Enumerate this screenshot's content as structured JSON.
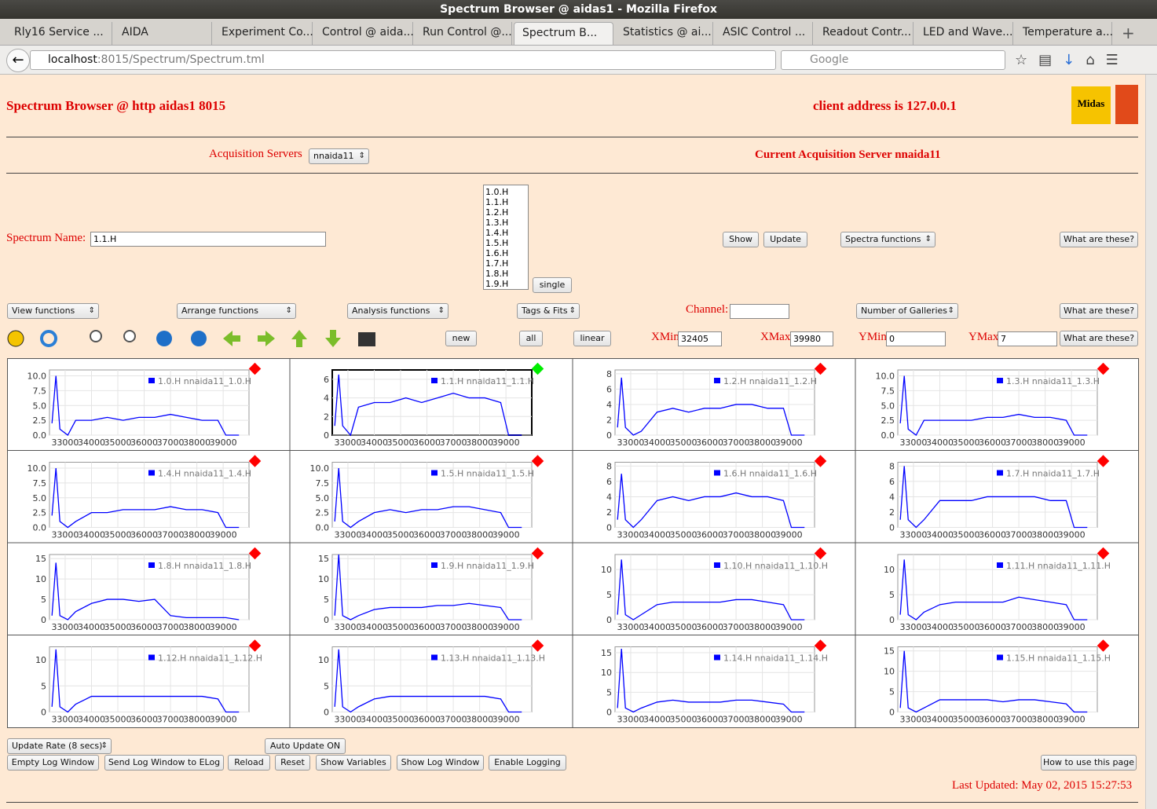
{
  "window": {
    "title": "Spectrum Browser @ aidas1 - Mozilla Firefox"
  },
  "tabs": [
    "Rly16 Service ...",
    "AIDA",
    "Experiment Co...",
    "Control @ aida...",
    "Run Control @...",
    "Spectrum B...",
    "Statistics @ ai...",
    "ASIC Control ...",
    "Readout Contr...",
    "LED and Wave...",
    "Temperature a..."
  ],
  "url": {
    "host": "localhost",
    "path": ":8015/Spectrum/Spectrum.tml"
  },
  "search": "Google",
  "header": {
    "title": "Spectrum Browser @ http aidas1 8015",
    "client": "client address is 127.0.0.1",
    "logo": "Midas"
  },
  "acquisition": {
    "label": "Acquisition Servers",
    "selected": "nnaida11",
    "current": "Current Acquisition Server nnaida11"
  },
  "spectrum": {
    "label": "Spectrum Name:",
    "value": "1.1.H",
    "list": [
      "1.0.H",
      "1.1.H",
      "1.2.H",
      "1.3.H",
      "1.4.H",
      "1.5.H",
      "1.6.H",
      "1.7.H",
      "1.8.H",
      "1.9.H"
    ],
    "single": "single",
    "show": "Show",
    "update": "Update",
    "functions": "Spectra functions",
    "help": "What are these?"
  },
  "controls": {
    "view": "View functions",
    "arrange": "Arrange functions",
    "analysis": "Analysis functions",
    "tags": "Tags & Fits",
    "channel": "Channel:",
    "galleries": "Number of Galleries",
    "help": "What are these?"
  },
  "range": {
    "new": "new",
    "all": "all",
    "linear": "linear",
    "xmin_label": "XMin",
    "xmin": "32405",
    "xmax_label": "XMax",
    "xmax": "39980",
    "ymin_label": "YMin",
    "ymin": "0",
    "ymax_label": "YMax",
    "ymax": "7",
    "help": "What are these?"
  },
  "chart_data": [
    {
      "type": "line",
      "x": [
        32500,
        32650,
        32800,
        33100,
        33400,
        34000,
        34600,
        35200,
        35800,
        36400,
        37000,
        37600,
        38200,
        38800,
        39100,
        39600
      ],
      "xlim": [
        32405,
        39980
      ],
      "xticks": [
        33000,
        34000,
        35000,
        36000,
        37000,
        38000,
        39000
      ],
      "ylim": [
        0,
        11
      ],
      "yticks": [
        {
          "value": 0,
          "label": "0.0"
        },
        2.5,
        {
          "value": 5,
          "label": "5.0"
        },
        7.5,
        {
          "value": 10,
          "label": "10.0"
        }
      ],
      "grid": true,
      "marker_color": "#ff0000",
      "series": [
        {
          "name": "1.0.H nnaida11_1.0.H",
          "color": "#0000ff",
          "values": [
            2,
            10,
            1,
            0,
            2.5,
            2.5,
            3,
            2.5,
            3,
            3,
            3.5,
            3,
            2.5,
            2.5,
            0,
            0
          ]
        }
      ]
    },
    {
      "type": "line",
      "x": [
        32500,
        32650,
        32800,
        33100,
        33400,
        34000,
        34600,
        35200,
        35800,
        36400,
        37000,
        37600,
        38200,
        38800,
        39100,
        39600
      ],
      "xlim": [
        32405,
        39980
      ],
      "xticks": [
        33000,
        34000,
        35000,
        36000,
        37000,
        38000,
        39000
      ],
      "ylim": [
        0,
        7
      ],
      "yticks": [
        0,
        2,
        4,
        6
      ],
      "grid": true,
      "selected": true,
      "marker_color": "#00ee00",
      "series": [
        {
          "name": "1.1.H nnaida11_1.1.H",
          "color": "#0000ff",
          "values": [
            1,
            6.5,
            1,
            0,
            3,
            3.5,
            3.5,
            4,
            3.5,
            4,
            4.5,
            4,
            4,
            3.5,
            0,
            0
          ]
        }
      ]
    },
    {
      "type": "line",
      "x": [
        32500,
        32650,
        32800,
        33100,
        33400,
        34000,
        34600,
        35200,
        35800,
        36400,
        37000,
        37600,
        38200,
        38800,
        39100,
        39600
      ],
      "xlim": [
        32405,
        39980
      ],
      "xticks": [
        33000,
        34000,
        35000,
        36000,
        37000,
        38000,
        39000
      ],
      "ylim": [
        0,
        8.5
      ],
      "yticks": [
        0,
        2,
        4,
        6,
        8
      ],
      "grid": true,
      "marker_color": "#ff0000",
      "series": [
        {
          "name": "1.2.H nnaida11_1.2.H",
          "color": "#0000ff",
          "values": [
            1,
            7.5,
            1,
            0,
            0.5,
            3,
            3.5,
            3,
            3.5,
            3.5,
            4,
            4,
            3.5,
            3.5,
            0,
            0
          ]
        }
      ]
    },
    {
      "type": "line",
      "x": [
        32500,
        32650,
        32800,
        33100,
        33400,
        34000,
        34600,
        35200,
        35800,
        36400,
        37000,
        37600,
        38200,
        38800,
        39100,
        39600
      ],
      "xlim": [
        32405,
        39980
      ],
      "xticks": [
        33000,
        34000,
        35000,
        36000,
        37000,
        38000,
        39000
      ],
      "ylim": [
        0,
        11
      ],
      "yticks": [
        {
          "value": 0,
          "label": "0.0"
        },
        2.5,
        {
          "value": 5,
          "label": "5.0"
        },
        7.5,
        {
          "value": 10,
          "label": "10.0"
        }
      ],
      "grid": true,
      "marker_color": "#ff0000",
      "series": [
        {
          "name": "1.3.H nnaida11_1.3.H",
          "color": "#0000ff",
          "values": [
            2,
            10,
            1,
            0,
            2.5,
            2.5,
            2.5,
            2.5,
            3,
            3,
            3.5,
            3,
            3,
            2.5,
            0,
            0
          ]
        }
      ]
    },
    {
      "type": "line",
      "x": [
        32500,
        32650,
        32800,
        33100,
        33400,
        34000,
        34600,
        35200,
        35800,
        36400,
        37000,
        37600,
        38200,
        38800,
        39100,
        39600
      ],
      "xlim": [
        32405,
        39980
      ],
      "xticks": [
        33000,
        34000,
        35000,
        36000,
        37000,
        38000,
        39000
      ],
      "ylim": [
        0,
        11
      ],
      "yticks": [
        {
          "value": 0,
          "label": "0.0"
        },
        2.5,
        {
          "value": 5,
          "label": "5.0"
        },
        7.5,
        {
          "value": 10,
          "label": "10.0"
        }
      ],
      "grid": true,
      "marker_color": "#ff0000",
      "series": [
        {
          "name": "1.4.H nnaida11_1.4.H",
          "color": "#0000ff",
          "values": [
            2,
            10,
            1,
            0,
            1,
            2.5,
            2.5,
            3,
            3,
            3,
            3.5,
            3,
            3,
            2.5,
            0,
            0
          ]
        }
      ]
    },
    {
      "type": "line",
      "x": [
        32500,
        32650,
        32800,
        33100,
        33400,
        34000,
        34600,
        35200,
        35800,
        36400,
        37000,
        37600,
        38200,
        38800,
        39100,
        39600
      ],
      "xlim": [
        32405,
        39980
      ],
      "xticks": [
        33000,
        34000,
        35000,
        36000,
        37000,
        38000,
        39000
      ],
      "ylim": [
        0,
        11
      ],
      "yticks": [
        {
          "value": 0,
          "label": "0.0"
        },
        2.5,
        {
          "value": 5,
          "label": "5.0"
        },
        7.5,
        {
          "value": 10,
          "label": "10.0"
        }
      ],
      "grid": true,
      "marker_color": "#ff0000",
      "series": [
        {
          "name": "1.5.H nnaida11_1.5.H",
          "color": "#0000ff",
          "values": [
            1,
            10,
            1,
            0,
            1,
            2.5,
            3,
            2.5,
            3,
            3,
            3.5,
            3.5,
            3,
            2.5,
            0,
            0
          ]
        }
      ]
    },
    {
      "type": "line",
      "x": [
        32500,
        32650,
        32800,
        33100,
        33400,
        34000,
        34600,
        35200,
        35800,
        36400,
        37000,
        37600,
        38200,
        38800,
        39100,
        39600
      ],
      "xlim": [
        32405,
        39980
      ],
      "xticks": [
        33000,
        34000,
        35000,
        36000,
        37000,
        38000,
        39000
      ],
      "ylim": [
        0,
        8.5
      ],
      "yticks": [
        0,
        2,
        4,
        6,
        8
      ],
      "grid": true,
      "marker_color": "#ff0000",
      "series": [
        {
          "name": "1.6.H nnaida11_1.6.H",
          "color": "#0000ff",
          "values": [
            1,
            7,
            1,
            0,
            1,
            3.5,
            4,
            3.5,
            4,
            4,
            4.5,
            4,
            4,
            3.5,
            0,
            0
          ]
        }
      ]
    },
    {
      "type": "line",
      "x": [
        32500,
        32650,
        32800,
        33100,
        33400,
        34000,
        34600,
        35200,
        35800,
        36400,
        37000,
        37600,
        38200,
        38800,
        39100,
        39600
      ],
      "xlim": [
        32405,
        39980
      ],
      "xticks": [
        33000,
        34000,
        35000,
        36000,
        37000,
        38000,
        39000
      ],
      "ylim": [
        0,
        8.5
      ],
      "yticks": [
        0,
        2,
        4,
        6,
        8
      ],
      "grid": true,
      "marker_color": "#ff0000",
      "series": [
        {
          "name": "1.7.H nnaida11_1.7.H",
          "color": "#0000ff",
          "values": [
            1,
            8,
            1,
            0,
            1,
            3.5,
            3.5,
            3.5,
            4,
            4,
            4,
            4,
            3.5,
            3.5,
            0,
            0
          ]
        }
      ]
    },
    {
      "type": "line",
      "x": [
        32500,
        32650,
        32800,
        33100,
        33400,
        34000,
        34600,
        35200,
        35800,
        36400,
        37000,
        37600,
        38200,
        38800,
        39100,
        39600
      ],
      "xlim": [
        32405,
        39980
      ],
      "xticks": [
        33000,
        34000,
        35000,
        36000,
        37000,
        38000,
        39000
      ],
      "ylim": [
        0,
        16
      ],
      "yticks": [
        0,
        5,
        10,
        15
      ],
      "grid": true,
      "marker_color": "#ff0000",
      "series": [
        {
          "name": "1.8.H nnaida11_1.8.H",
          "color": "#0000ff",
          "values": [
            1,
            14,
            1,
            0,
            2,
            4,
            5,
            5,
            4.5,
            5,
            1,
            0.5,
            0.5,
            0.5,
            0.5,
            0
          ]
        }
      ]
    },
    {
      "type": "line",
      "x": [
        32500,
        32650,
        32800,
        33100,
        33400,
        34000,
        34600,
        35200,
        35800,
        36400,
        37000,
        37600,
        38200,
        38800,
        39100,
        39600
      ],
      "xlim": [
        32405,
        39980
      ],
      "xticks": [
        33000,
        34000,
        35000,
        36000,
        37000,
        38000,
        39000
      ],
      "ylim": [
        0,
        16
      ],
      "yticks": [
        0,
        5,
        10,
        15
      ],
      "grid": true,
      "marker_color": "#ff0000",
      "series": [
        {
          "name": "1.9.H nnaida11_1.9.H",
          "color": "#0000ff",
          "values": [
            1,
            16,
            1,
            0,
            1,
            2.5,
            3,
            3,
            3,
            3.5,
            3.5,
            4,
            3.5,
            3,
            0,
            0
          ]
        }
      ]
    },
    {
      "type": "line",
      "x": [
        32500,
        32650,
        32800,
        33100,
        33400,
        34000,
        34600,
        35200,
        35800,
        36400,
        37000,
        37600,
        38200,
        38800,
        39100,
        39600
      ],
      "xlim": [
        32405,
        39980
      ],
      "xticks": [
        33000,
        34000,
        35000,
        36000,
        37000,
        38000,
        39000
      ],
      "ylim": [
        0,
        13
      ],
      "yticks": [
        0,
        5,
        10
      ],
      "grid": true,
      "marker_color": "#ff0000",
      "series": [
        {
          "name": "1.10.H nnaida11_1.10.H",
          "color": "#0000ff",
          "values": [
            1,
            12,
            1,
            0,
            1,
            3,
            3.5,
            3.5,
            3.5,
            3.5,
            4,
            4,
            3.5,
            3,
            0,
            0
          ]
        }
      ]
    },
    {
      "type": "line",
      "x": [
        32500,
        32650,
        32800,
        33100,
        33400,
        34000,
        34600,
        35200,
        35800,
        36400,
        37000,
        37600,
        38200,
        38800,
        39100,
        39600
      ],
      "xlim": [
        32405,
        39980
      ],
      "xticks": [
        33000,
        34000,
        35000,
        36000,
        37000,
        38000,
        39000
      ],
      "ylim": [
        0,
        13
      ],
      "yticks": [
        0,
        5,
        10
      ],
      "grid": true,
      "marker_color": "#ff0000",
      "series": [
        {
          "name": "1.11.H nnaida11_1.11.H",
          "color": "#0000ff",
          "values": [
            1,
            12,
            1,
            0,
            1.5,
            3,
            3.5,
            3.5,
            3.5,
            3.5,
            4.5,
            4,
            3.5,
            3,
            0,
            0
          ]
        }
      ]
    },
    {
      "type": "line",
      "x": [
        32500,
        32650,
        32800,
        33100,
        33400,
        34000,
        34600,
        35200,
        35800,
        36400,
        37000,
        37600,
        38200,
        38800,
        39100,
        39600
      ],
      "xlim": [
        32405,
        39980
      ],
      "xticks": [
        33000,
        34000,
        35000,
        36000,
        37000,
        38000,
        39000
      ],
      "ylim": [
        0,
        12.5
      ],
      "yticks": [
        0,
        5,
        10
      ],
      "grid": true,
      "marker_color": "#ff0000",
      "series": [
        {
          "name": "1.12.H nnaida11_1.12.H",
          "color": "#0000ff",
          "values": [
            1,
            12,
            1,
            0,
            1.5,
            3,
            3,
            3,
            3,
            3,
            3,
            3,
            3,
            2.5,
            0,
            0
          ]
        }
      ]
    },
    {
      "type": "line",
      "x": [
        32500,
        32650,
        32800,
        33100,
        33400,
        34000,
        34600,
        35200,
        35800,
        36400,
        37000,
        37600,
        38200,
        38800,
        39100,
        39600
      ],
      "xlim": [
        32405,
        39980
      ],
      "xticks": [
        33000,
        34000,
        35000,
        36000,
        37000,
        38000,
        39000
      ],
      "ylim": [
        0,
        12.5
      ],
      "yticks": [
        0,
        5,
        10
      ],
      "grid": true,
      "marker_color": "#ff0000",
      "series": [
        {
          "name": "1.13.H nnaida11_1.13.H",
          "color": "#0000ff",
          "values": [
            1,
            12,
            1,
            0,
            1,
            2.5,
            3,
            3,
            3,
            3,
            3,
            3,
            3,
            2.5,
            0,
            0
          ]
        }
      ]
    },
    {
      "type": "line",
      "x": [
        32500,
        32650,
        32800,
        33100,
        33400,
        34000,
        34600,
        35200,
        35800,
        36400,
        37000,
        37600,
        38200,
        38800,
        39100,
        39600
      ],
      "xlim": [
        32405,
        39980
      ],
      "xticks": [
        33000,
        34000,
        35000,
        36000,
        37000,
        38000,
        39000
      ],
      "ylim": [
        0,
        16.5
      ],
      "yticks": [
        0,
        5,
        10,
        15
      ],
      "grid": true,
      "marker_color": "#ff0000",
      "series": [
        {
          "name": "1.14.H nnaida11_1.14.H",
          "color": "#0000ff",
          "values": [
            1,
            16,
            1,
            0,
            1,
            2.5,
            3,
            2.5,
            2.5,
            2.5,
            3,
            3,
            2.5,
            2,
            0,
            0
          ]
        }
      ]
    },
    {
      "type": "line",
      "x": [
        32500,
        32650,
        32800,
        33100,
        33400,
        34000,
        34600,
        35200,
        35800,
        36400,
        37000,
        37600,
        38200,
        38800,
        39100,
        39600
      ],
      "xlim": [
        32405,
        39980
      ],
      "xticks": [
        33000,
        34000,
        35000,
        36000,
        37000,
        38000,
        39000
      ],
      "ylim": [
        0,
        16
      ],
      "yticks": [
        0,
        5,
        10,
        15
      ],
      "grid": true,
      "marker_color": "#ff0000",
      "series": [
        {
          "name": "1.15.H nnaida11_1.15.H",
          "color": "#0000ff",
          "values": [
            1,
            15,
            1,
            0,
            1,
            3,
            3,
            3,
            3,
            2.5,
            3,
            3,
            2.5,
            2,
            0,
            0
          ]
        }
      ]
    }
  ],
  "footer": {
    "rate": "Update Rate (8 secs)",
    "auto": "Auto Update ON",
    "buttons": [
      "Empty Log Window",
      "Send Log Window to ELog",
      "Reload",
      "Reset",
      "Show Variables",
      "Show Log Window",
      "Enable Logging"
    ],
    "howto": "How to use this page",
    "updated": "Last Updated: May 02, 2015 15:27:53"
  }
}
